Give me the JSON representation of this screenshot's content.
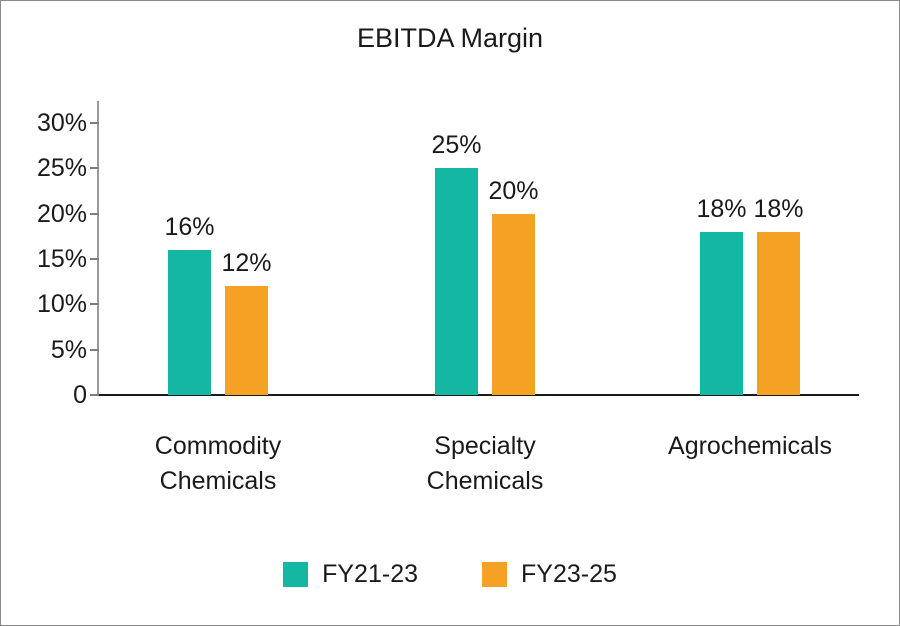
{
  "frame": {
    "background": "#ffffff",
    "border_color": "#8a8a8a"
  },
  "chart_data": {
    "type": "bar",
    "title": "EBITDA Margin",
    "categories": [
      "Commodity Chemicals",
      "Specialty Chemicals",
      "Agrochemicals"
    ],
    "series": [
      {
        "name": "FY21-23",
        "color": "#14b8a2",
        "values": [
          16,
          25,
          18
        ],
        "labels": [
          "16%",
          "25%",
          "18%"
        ]
      },
      {
        "name": "FY23-25",
        "color": "#f5a124",
        "values": [
          12,
          20,
          18
        ],
        "labels": [
          "12%",
          "20%",
          "18%"
        ]
      }
    ],
    "y_axis": {
      "ticks": [
        "30%",
        "25%",
        "20%",
        "15%",
        "10%",
        "5%",
        "0"
      ],
      "tick_values": [
        30,
        25,
        20,
        15,
        10,
        5,
        0
      ],
      "min": 0,
      "max": 30
    },
    "legend": {
      "position": "bottom"
    },
    "grid": false,
    "axis_colors": {
      "y_axis_line": "#9a9a9a",
      "x_axis_line": "#1a1a1a",
      "tick_mark": "#7d7d7d",
      "text": "#1a1a1a"
    }
  }
}
